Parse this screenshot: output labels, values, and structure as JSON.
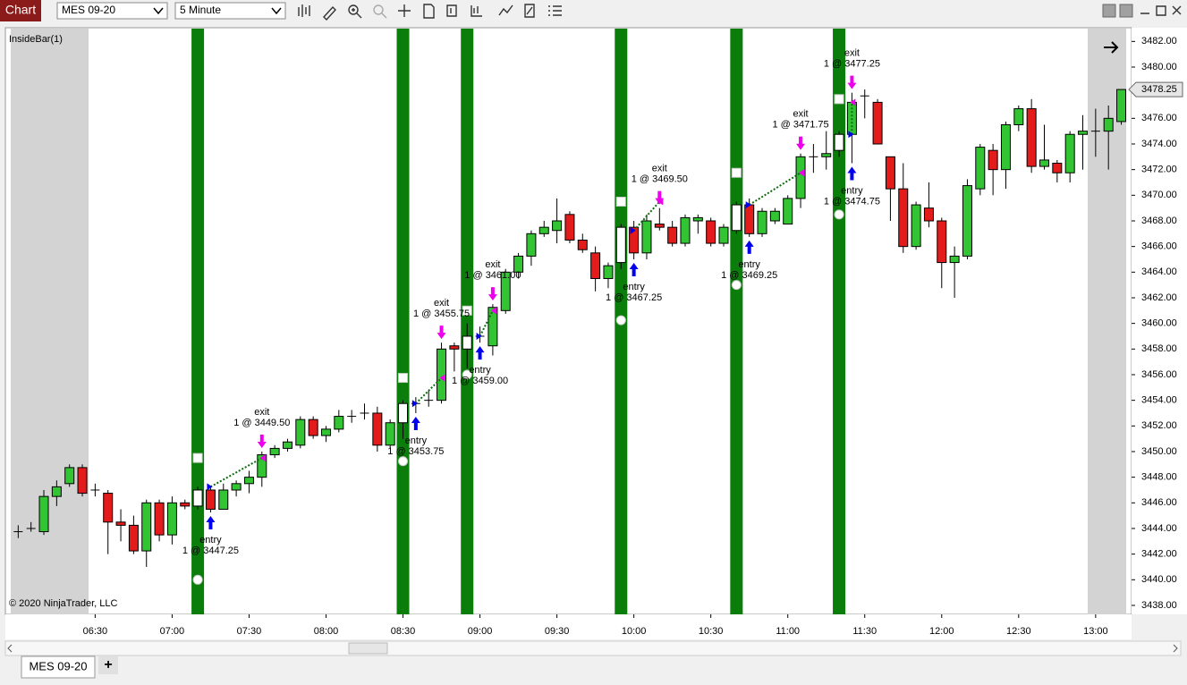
{
  "ui": {
    "app_label": "Chart",
    "instrument": "MES 09-20",
    "interval": "5 Minute",
    "indicator": "InsideBar(1)",
    "copyright": "© 2020 NinjaTrader, LLC",
    "tab": "MES 09-20",
    "add_tab": "+"
  },
  "chart_data": {
    "type": "candlestick",
    "x": [
      360,
      365,
      370,
      375,
      380,
      385,
      390,
      395,
      400,
      405,
      410,
      415,
      420,
      425,
      430,
      435,
      440,
      445,
      450,
      455,
      460,
      465,
      470,
      475,
      480,
      485,
      490,
      495,
      500,
      505,
      510,
      515,
      520,
      525,
      530,
      535,
      540,
      545,
      550,
      555,
      560,
      565,
      570,
      575,
      580,
      585,
      590,
      595,
      600,
      605,
      610,
      615,
      620,
      625,
      630,
      635,
      640,
      645,
      650,
      655,
      660,
      665,
      670,
      675,
      680,
      685,
      690,
      695,
      700,
      705,
      710,
      715,
      720,
      725,
      730,
      735,
      740,
      745,
      750,
      755,
      760,
      765,
      770,
      775,
      780,
      785,
      790
    ],
    "open": [
      3443.75,
      3444,
      3443.75,
      3446.5,
      3447.5,
      3448.75,
      3447,
      3446.75,
      3444.5,
      3444.25,
      3442.25,
      3446,
      3443.5,
      3446,
      3445.75,
      3447,
      3445.5,
      3447,
      3447.5,
      3448,
      3449.75,
      3450.25,
      3450.5,
      3452.5,
      3451.25,
      3451.75,
      3452.75,
      3453,
      3453,
      3450.5,
      3452.25,
      3453.75,
      3454,
      3454,
      3458.25,
      3458,
      3459,
      3458.25,
      3461,
      3464,
      3465.25,
      3467,
      3467.25,
      3468.5,
      3466.5,
      3465.5,
      3463.5,
      3464.75,
      3467.5,
      3465.5,
      3467.75,
      3467.5,
      3466.25,
      3468,
      3468,
      3466.25,
      3467.25,
      3469.25,
      3467,
      3468,
      3467.75,
      3469.75,
      3473,
      3473,
      3473.5,
      3474.75,
      3477.75,
      3477.25,
      3473,
      3470.5,
      3466,
      3469,
      3468,
      3464.75,
      3465.25,
      3470.5,
      3473.5,
      3472,
      3475.5,
      3476.75,
      3472.25,
      3472.5,
      3471.75,
      3474.75,
      3475,
      3475,
      3475.75
    ],
    "high": [
      3444.25,
      3444.5,
      3447,
      3447.75,
      3449,
      3449,
      3447.5,
      3447,
      3445.5,
      3445,
      3446.25,
      3446.25,
      3446.5,
      3446.25,
      3447.25,
      3447.25,
      3447.5,
      3447.75,
      3448.5,
      3450,
      3450.5,
      3451,
      3452.75,
      3452.75,
      3452,
      3453.25,
      3453.25,
      3453.75,
      3453.5,
      3452.5,
      3454,
      3454.25,
      3454.75,
      3458.5,
      3458.5,
      3460,
      3459.75,
      3461.5,
      3464.25,
      3465.5,
      3467.25,
      3468,
      3469.75,
      3468.75,
      3467,
      3466,
      3464.75,
      3467.75,
      3468,
      3468.5,
      3469,
      3468,
      3468.5,
      3468.5,
      3468.25,
      3467.75,
      3469.5,
      3469.75,
      3469,
      3469,
      3470,
      3473.25,
      3474,
      3475,
      3475,
      3478,
      3478.25,
      3477.5,
      3473,
      3472.5,
      3469.5,
      3471,
      3468.25,
      3466,
      3471.25,
      3474,
      3474,
      3475.75,
      3477,
      3477.5,
      3475.5,
      3472.75,
      3475,
      3476.25,
      3476.75,
      3477,
      3478.25
    ],
    "low": [
      3443.25,
      3443.75,
      3443.5,
      3445.75,
      3447.25,
      3446.5,
      3446.5,
      3442,
      3443,
      3442,
      3441,
      3443,
      3442.75,
      3445.5,
      3445.5,
      3445.25,
      3445.5,
      3446.5,
      3446.75,
      3447.25,
      3449.5,
      3450,
      3450.25,
      3451,
      3450.75,
      3451.5,
      3452.25,
      3452.5,
      3450,
      3450.25,
      3451,
      3453,
      3453.5,
      3453.75,
      3456.25,
      3456.5,
      3458.5,
      3457.5,
      3460.75,
      3463.5,
      3464.5,
      3466.75,
      3466.25,
      3466.25,
      3465.5,
      3462.5,
      3462.75,
      3464.25,
      3465,
      3465,
      3467.25,
      3466,
      3466,
      3467,
      3466,
      3466,
      3467,
      3466.75,
      3466.75,
      3467.75,
      3467.75,
      3469,
      3471.75,
      3472,
      3473,
      3472.5,
      3476,
      3474,
      3468,
      3465.5,
      3465.75,
      3467.5,
      3462.75,
      3462,
      3465,
      3470,
      3470,
      3470.5,
      3475,
      3471.75,
      3472,
      3471,
      3471,
      3472,
      3473,
      3472,
      3475.5
    ],
    "close": [
      3443.75,
      3444,
      3446.5,
      3447.25,
      3448.75,
      3446.75,
      3447,
      3444.5,
      3444.25,
      3442.25,
      3446,
      3443.5,
      3446,
      3445.75,
      3447,
      3445.5,
      3447,
      3447.5,
      3448,
      3449.75,
      3450.25,
      3450.75,
      3452.5,
      3451.25,
      3451.75,
      3452.75,
      3452.75,
      3453,
      3450.5,
      3452.25,
      3453.75,
      3453.75,
      3454,
      3458,
      3458,
      3459,
      3459,
      3461.25,
      3464,
      3465.25,
      3467,
      3467.5,
      3468,
      3466.5,
      3465.75,
      3463.5,
      3464.5,
      3467.5,
      3465.5,
      3468,
      3467.5,
      3466.25,
      3468.25,
      3468.25,
      3466.25,
      3467.5,
      3469.25,
      3467,
      3468.75,
      3468.75,
      3469.75,
      3473,
      3473,
      3473.25,
      3474.75,
      3477.25,
      3477.75,
      3474,
      3470.5,
      3466,
      3469.25,
      3468,
      3464.75,
      3465.25,
      3470.75,
      3473.75,
      3472,
      3475.5,
      3476.75,
      3472.25,
      3472.75,
      3471.75,
      3474.75,
      3475,
      3475,
      3476,
      3478.25
    ],
    "up_color": "#33c433",
    "down_color": "#e31b1b",
    "inside_color": "#ffffff",
    "band_color": "#0a7d0a",
    "inside_bars": [
      {
        "x": 430,
        "square": 3449.5,
        "circle": 3440
      },
      {
        "x": 510,
        "square": 3455.75,
        "circle": 3449.25
      },
      {
        "x": 535,
        "square": 3461,
        "circle": 3456
      },
      {
        "x": 595,
        "square": 3469.5,
        "circle": 3460.25
      },
      {
        "x": 640,
        "square": 3471.75,
        "circle": 3463
      },
      {
        "x": 680,
        "square": 3477.5,
        "circle": 3468.5
      }
    ],
    "trades": [
      {
        "entry_x": 435,
        "entry_price": 3447.25,
        "entry_label": "entry",
        "entry_text": "1 @ 3447.25",
        "exit_x": 455,
        "exit_price": 3449.5,
        "exit_label": "exit",
        "exit_text": "1 @ 3449.50"
      },
      {
        "entry_x": 515,
        "entry_price": 3453.75,
        "entry_label": "entry",
        "entry_text": "1 @ 3453.75",
        "exit_x": 525,
        "exit_price": 3455.75,
        "exit_label": "exit",
        "exit_text": "1 @ 3455.75"
      },
      {
        "entry_x": 540,
        "entry_price": 3459,
        "entry_label": "entry",
        "entry_text": "1 @ 3459.00",
        "exit_x": 545,
        "exit_price": 3461,
        "exit_label": "exit",
        "exit_text": "1 @ 3461.00"
      },
      {
        "entry_x": 600,
        "entry_price": 3467.25,
        "entry_label": "entry",
        "entry_text": "1 @ 3467.25",
        "exit_x": 610,
        "exit_price": 3469.5,
        "exit_label": "exit",
        "exit_text": "1 @ 3469.50"
      },
      {
        "entry_x": 645,
        "entry_price": 3469.25,
        "entry_label": "entry",
        "entry_text": "1 @ 3469.25",
        "exit_x": 665,
        "exit_price": 3471.75,
        "exit_label": "exit",
        "exit_text": "1 @ 3471.75"
      },
      {
        "entry_x": 685,
        "entry_price": 3474.75,
        "entry_label": "entry",
        "entry_text": "1 @ 3474.75",
        "exit_x": 685,
        "exit_price": 3477.25,
        "exit_label": "exit",
        "exit_text": "1 @ 3477.25"
      }
    ],
    "xlim": [
      355,
      794
    ],
    "ylim": [
      3437.3,
      3483
    ],
    "xticks": [
      {
        "value": 390,
        "label": "06:30"
      },
      {
        "value": 420,
        "label": "07:00"
      },
      {
        "value": 450,
        "label": "07:30"
      },
      {
        "value": 480,
        "label": "08:00"
      },
      {
        "value": 510,
        "label": "08:30"
      },
      {
        "value": 540,
        "label": "09:00"
      },
      {
        "value": 570,
        "label": "09:30"
      },
      {
        "value": 600,
        "label": "10:00"
      },
      {
        "value": 630,
        "label": "10:30"
      },
      {
        "value": 660,
        "label": "11:00"
      },
      {
        "value": 690,
        "label": "11:30"
      },
      {
        "value": 720,
        "label": "12:00"
      },
      {
        "value": 750,
        "label": "12:30"
      },
      {
        "value": 780,
        "label": "13:00"
      }
    ],
    "yticks": [
      {
        "value": 3438,
        "label": "3438.00"
      },
      {
        "value": 3440,
        "label": "3440.00"
      },
      {
        "value": 3442,
        "label": "3442.00"
      },
      {
        "value": 3444,
        "label": "3444.00"
      },
      {
        "value": 3446,
        "label": "3446.00"
      },
      {
        "value": 3448,
        "label": "3448.00"
      },
      {
        "value": 3450,
        "label": "3450.00"
      },
      {
        "value": 3452,
        "label": "3452.00"
      },
      {
        "value": 3454,
        "label": "3454.00"
      },
      {
        "value": 3456,
        "label": "3456.00"
      },
      {
        "value": 3458,
        "label": "3458.00"
      },
      {
        "value": 3460,
        "label": "3460.00"
      },
      {
        "value": 3462,
        "label": "3462.00"
      },
      {
        "value": 3464,
        "label": "3464.00"
      },
      {
        "value": 3466,
        "label": "3466.00"
      },
      {
        "value": 3468,
        "label": "3468.00"
      },
      {
        "value": 3470,
        "label": "3470.00"
      },
      {
        "value": 3472,
        "label": "3472.00"
      },
      {
        "value": 3474,
        "label": "3474.00"
      },
      {
        "value": 3476,
        "label": "3476.00"
      },
      {
        "value": 3478,
        "label": "3478.00"
      },
      {
        "value": 3480,
        "label": "3480.00"
      },
      {
        "value": 3482,
        "label": "3482.00"
      }
    ]
  }
}
